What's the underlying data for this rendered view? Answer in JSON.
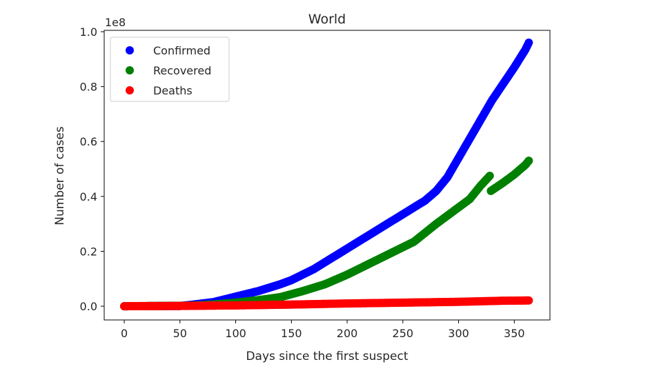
{
  "chart_data": {
    "type": "scatter",
    "title": "World",
    "xlabel": "Days since the first suspect",
    "ylabel": "Number of cases",
    "y_offset_label": "1e8",
    "xlim": [
      -18,
      382
    ],
    "ylim": [
      -0.05,
      1.005
    ],
    "xticks": [
      0,
      50,
      100,
      150,
      200,
      250,
      300,
      350
    ],
    "yticks": [
      0.0,
      0.2,
      0.4,
      0.6,
      0.8,
      1.0
    ],
    "ytick_labels": [
      "0.0",
      "0.2",
      "0.4",
      "0.6",
      "0.8",
      "1.0"
    ],
    "legend": {
      "position": "top-left"
    },
    "grid": false,
    "x_range": [
      0,
      363
    ],
    "series": [
      {
        "name": "Confirmed",
        "color": "#0000ff",
        "anchors": [
          [
            0,
            0.0
          ],
          [
            50,
            0.001
          ],
          [
            60,
            0.005
          ],
          [
            80,
            0.015
          ],
          [
            100,
            0.035
          ],
          [
            120,
            0.055
          ],
          [
            140,
            0.08
          ],
          [
            150,
            0.095
          ],
          [
            160,
            0.115
          ],
          [
            170,
            0.135
          ],
          [
            180,
            0.16
          ],
          [
            190,
            0.185
          ],
          [
            200,
            0.21
          ],
          [
            220,
            0.26
          ],
          [
            240,
            0.31
          ],
          [
            260,
            0.36
          ],
          [
            270,
            0.385
          ],
          [
            280,
            0.42
          ],
          [
            290,
            0.47
          ],
          [
            300,
            0.54
          ],
          [
            310,
            0.61
          ],
          [
            320,
            0.68
          ],
          [
            330,
            0.75
          ],
          [
            340,
            0.81
          ],
          [
            350,
            0.87
          ],
          [
            360,
            0.935
          ],
          [
            363,
            0.96
          ]
        ]
      },
      {
        "name": "Recovered",
        "color": "#008000",
        "anchors": [
          [
            0,
            0.0
          ],
          [
            60,
            0.002
          ],
          [
            80,
            0.006
          ],
          [
            100,
            0.013
          ],
          [
            120,
            0.022
          ],
          [
            140,
            0.033
          ],
          [
            160,
            0.055
          ],
          [
            180,
            0.08
          ],
          [
            200,
            0.115
          ],
          [
            220,
            0.155
          ],
          [
            240,
            0.195
          ],
          [
            260,
            0.235
          ],
          [
            280,
            0.3
          ],
          [
            290,
            0.33
          ],
          [
            300,
            0.36
          ],
          [
            310,
            0.39
          ],
          [
            320,
            0.44
          ],
          [
            328,
            0.475
          ],
          [
            329,
            0.42
          ],
          [
            340,
            0.45
          ],
          [
            350,
            0.48
          ],
          [
            360,
            0.515
          ],
          [
            363,
            0.53
          ]
        ]
      },
      {
        "name": "Deaths",
        "color": "#ff0000",
        "anchors": [
          [
            0,
            0.0
          ],
          [
            50,
            0.001
          ],
          [
            100,
            0.003
          ],
          [
            150,
            0.006
          ],
          [
            200,
            0.01
          ],
          [
            250,
            0.013
          ],
          [
            300,
            0.016
          ],
          [
            340,
            0.02
          ],
          [
            363,
            0.021
          ]
        ]
      }
    ]
  }
}
